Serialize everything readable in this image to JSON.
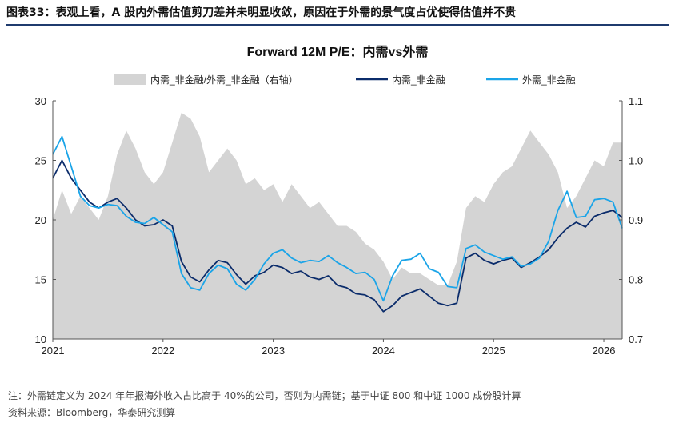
{
  "figure": {
    "title": "图表33：表观上看，A 股内外需估值剪刀差并未明显收敛，原因在于外需的景气度占优使得估值并不贵",
    "note": "注：外需链定义为 2024 年年报海外收入占比高于 40%的公司，否则为内需链；基于中证 800 和中证 1000 成份股计算",
    "source": "资料来源：Bloomberg，华泰研究测算"
  },
  "chart_data": {
    "type": "line",
    "title": "Forward 12M P/E：内需vs外需",
    "legend_position": "top",
    "x_ticks": [
      "2021",
      "2022",
      "2023",
      "2024",
      "2025",
      "2026"
    ],
    "x_range": [
      "2021-01",
      "2026-03"
    ],
    "y_left": {
      "min": 10,
      "max": 30,
      "ticks": [
        "10",
        "15",
        "20",
        "25",
        "30"
      ]
    },
    "y_right": {
      "min": 0.7,
      "max": 1.1,
      "ticks": [
        "0.7",
        "0.8",
        "0.9",
        "1.0",
        "1.1"
      ]
    },
    "grid": false,
    "colors": {
      "ratio": "#d4d4d4",
      "domestic": "#0b2c6b",
      "foreign": "#1aa4e8"
    },
    "series": [
      {
        "name": "内需_非金融/外需_非金融（右轴）",
        "axis": "right",
        "style": "area",
        "points": [
          [
            "2021-01",
            0.9
          ],
          [
            "2021-02",
            0.95
          ],
          [
            "2021-03",
            0.91
          ],
          [
            "2021-04",
            0.94
          ],
          [
            "2021-05",
            0.92
          ],
          [
            "2021-06",
            0.9
          ],
          [
            "2021-07",
            0.94
          ],
          [
            "2021-08",
            1.01
          ],
          [
            "2021-09",
            1.05
          ],
          [
            "2021-10",
            1.02
          ],
          [
            "2021-11",
            0.98
          ],
          [
            "2021-12",
            0.96
          ],
          [
            "2022-01",
            0.98
          ],
          [
            "2022-02",
            1.03
          ],
          [
            "2022-03",
            1.08
          ],
          [
            "2022-04",
            1.07
          ],
          [
            "2022-05",
            1.04
          ],
          [
            "2022-06",
            0.98
          ],
          [
            "2022-07",
            1.0
          ],
          [
            "2022-08",
            1.02
          ],
          [
            "2022-09",
            1.0
          ],
          [
            "2022-10",
            0.96
          ],
          [
            "2022-11",
            0.97
          ],
          [
            "2022-12",
            0.95
          ],
          [
            "2023-01",
            0.96
          ],
          [
            "2023-02",
            0.93
          ],
          [
            "2023-03",
            0.96
          ],
          [
            "2023-04",
            0.94
          ],
          [
            "2023-05",
            0.92
          ],
          [
            "2023-06",
            0.93
          ],
          [
            "2023-07",
            0.91
          ],
          [
            "2023-08",
            0.89
          ],
          [
            "2023-09",
            0.89
          ],
          [
            "2023-10",
            0.88
          ],
          [
            "2023-11",
            0.86
          ],
          [
            "2023-12",
            0.85
          ],
          [
            "2024-01",
            0.83
          ],
          [
            "2024-02",
            0.8
          ],
          [
            "2024-03",
            0.82
          ],
          [
            "2024-04",
            0.81
          ],
          [
            "2024-05",
            0.81
          ],
          [
            "2024-06",
            0.8
          ],
          [
            "2024-07",
            0.79
          ],
          [
            "2024-08",
            0.79
          ],
          [
            "2024-09",
            0.83
          ],
          [
            "2024-10",
            0.92
          ],
          [
            "2024-11",
            0.94
          ],
          [
            "2024-12",
            0.93
          ],
          [
            "2025-01",
            0.96
          ],
          [
            "2025-02",
            0.98
          ],
          [
            "2025-03",
            0.99
          ],
          [
            "2025-04",
            1.02
          ],
          [
            "2025-05",
            1.05
          ],
          [
            "2025-06",
            1.03
          ],
          [
            "2025-07",
            1.01
          ],
          [
            "2025-08",
            0.98
          ],
          [
            "2025-09",
            0.92
          ],
          [
            "2025-10",
            0.94
          ],
          [
            "2025-11",
            0.97
          ],
          [
            "2025-12",
            1.0
          ],
          [
            "2026-01",
            0.99
          ],
          [
            "2026-02",
            1.03
          ],
          [
            "2026-03",
            1.03
          ]
        ]
      },
      {
        "name": "内需_非金融",
        "axis": "left",
        "style": "line",
        "points": [
          [
            "2021-01",
            23.5
          ],
          [
            "2021-02",
            25.0
          ],
          [
            "2021-03",
            23.5
          ],
          [
            "2021-04",
            22.5
          ],
          [
            "2021-05",
            21.5
          ],
          [
            "2021-06",
            21.0
          ],
          [
            "2021-07",
            21.5
          ],
          [
            "2021-08",
            21.8
          ],
          [
            "2021-09",
            21.0
          ],
          [
            "2021-10",
            20.0
          ],
          [
            "2021-11",
            19.5
          ],
          [
            "2021-12",
            19.6
          ],
          [
            "2022-01",
            20.0
          ],
          [
            "2022-02",
            19.5
          ],
          [
            "2022-03",
            16.5
          ],
          [
            "2022-04",
            15.2
          ],
          [
            "2022-05",
            14.8
          ],
          [
            "2022-06",
            15.8
          ],
          [
            "2022-07",
            16.6
          ],
          [
            "2022-08",
            16.4
          ],
          [
            "2022-09",
            15.4
          ],
          [
            "2022-10",
            14.6
          ],
          [
            "2022-11",
            15.3
          ],
          [
            "2022-12",
            15.6
          ],
          [
            "2023-01",
            16.2
          ],
          [
            "2023-02",
            16.0
          ],
          [
            "2023-03",
            15.5
          ],
          [
            "2023-04",
            15.7
          ],
          [
            "2023-05",
            15.2
          ],
          [
            "2023-06",
            15.0
          ],
          [
            "2023-07",
            15.3
          ],
          [
            "2023-08",
            14.5
          ],
          [
            "2023-09",
            14.3
          ],
          [
            "2023-10",
            13.8
          ],
          [
            "2023-11",
            13.7
          ],
          [
            "2023-12",
            13.3
          ],
          [
            "2024-01",
            12.3
          ],
          [
            "2024-02",
            12.8
          ],
          [
            "2024-03",
            13.6
          ],
          [
            "2024-04",
            13.9
          ],
          [
            "2024-05",
            14.2
          ],
          [
            "2024-06",
            13.6
          ],
          [
            "2024-07",
            13.0
          ],
          [
            "2024-08",
            12.8
          ],
          [
            "2024-09",
            13.0
          ],
          [
            "2024-10",
            16.8
          ],
          [
            "2024-11",
            17.2
          ],
          [
            "2024-12",
            16.6
          ],
          [
            "2025-01",
            16.3
          ],
          [
            "2025-02",
            16.6
          ],
          [
            "2025-03",
            16.8
          ],
          [
            "2025-04",
            16.0
          ],
          [
            "2025-05",
            16.4
          ],
          [
            "2025-06",
            16.9
          ],
          [
            "2025-07",
            17.5
          ],
          [
            "2025-08",
            18.5
          ],
          [
            "2025-09",
            19.3
          ],
          [
            "2025-10",
            19.8
          ],
          [
            "2025-11",
            19.4
          ],
          [
            "2025-12",
            20.3
          ],
          [
            "2026-01",
            20.6
          ],
          [
            "2026-02",
            20.8
          ],
          [
            "2026-03",
            20.2
          ]
        ]
      },
      {
        "name": "外需_非金融",
        "axis": "left",
        "style": "line",
        "points": [
          [
            "2021-01",
            25.5
          ],
          [
            "2021-02",
            27.0
          ],
          [
            "2021-03",
            24.5
          ],
          [
            "2021-04",
            22.0
          ],
          [
            "2021-05",
            21.2
          ],
          [
            "2021-06",
            21.0
          ],
          [
            "2021-07",
            21.3
          ],
          [
            "2021-08",
            21.2
          ],
          [
            "2021-09",
            20.3
          ],
          [
            "2021-10",
            19.8
          ],
          [
            "2021-11",
            19.7
          ],
          [
            "2021-12",
            20.2
          ],
          [
            "2022-01",
            19.6
          ],
          [
            "2022-02",
            19.0
          ],
          [
            "2022-03",
            15.5
          ],
          [
            "2022-04",
            14.3
          ],
          [
            "2022-05",
            14.1
          ],
          [
            "2022-06",
            15.5
          ],
          [
            "2022-07",
            16.2
          ],
          [
            "2022-08",
            15.9
          ],
          [
            "2022-09",
            14.6
          ],
          [
            "2022-10",
            14.1
          ],
          [
            "2022-11",
            15.0
          ],
          [
            "2022-12",
            16.3
          ],
          [
            "2023-01",
            17.2
          ],
          [
            "2023-02",
            17.5
          ],
          [
            "2023-03",
            16.8
          ],
          [
            "2023-04",
            16.4
          ],
          [
            "2023-05",
            16.6
          ],
          [
            "2023-06",
            16.5
          ],
          [
            "2023-07",
            17.0
          ],
          [
            "2023-08",
            16.4
          ],
          [
            "2023-09",
            16.0
          ],
          [
            "2023-10",
            15.5
          ],
          [
            "2023-11",
            15.6
          ],
          [
            "2023-12",
            15.0
          ],
          [
            "2024-01",
            13.2
          ],
          [
            "2024-02",
            15.3
          ],
          [
            "2024-03",
            16.6
          ],
          [
            "2024-04",
            16.7
          ],
          [
            "2024-05",
            17.2
          ],
          [
            "2024-06",
            15.9
          ],
          [
            "2024-07",
            15.6
          ],
          [
            "2024-08",
            14.4
          ],
          [
            "2024-09",
            14.3
          ],
          [
            "2024-10",
            17.6
          ],
          [
            "2024-11",
            17.9
          ],
          [
            "2024-12",
            17.3
          ],
          [
            "2025-01",
            17.0
          ],
          [
            "2025-02",
            16.7
          ],
          [
            "2025-03",
            16.9
          ],
          [
            "2025-04",
            16.1
          ],
          [
            "2025-05",
            16.3
          ],
          [
            "2025-06",
            16.8
          ],
          [
            "2025-07",
            18.2
          ],
          [
            "2025-08",
            20.8
          ],
          [
            "2025-09",
            22.4
          ],
          [
            "2025-10",
            20.2
          ],
          [
            "2025-11",
            20.3
          ],
          [
            "2025-12",
            21.7
          ],
          [
            "2026-01",
            21.8
          ],
          [
            "2026-02",
            21.5
          ],
          [
            "2026-03",
            19.3
          ]
        ]
      }
    ]
  }
}
